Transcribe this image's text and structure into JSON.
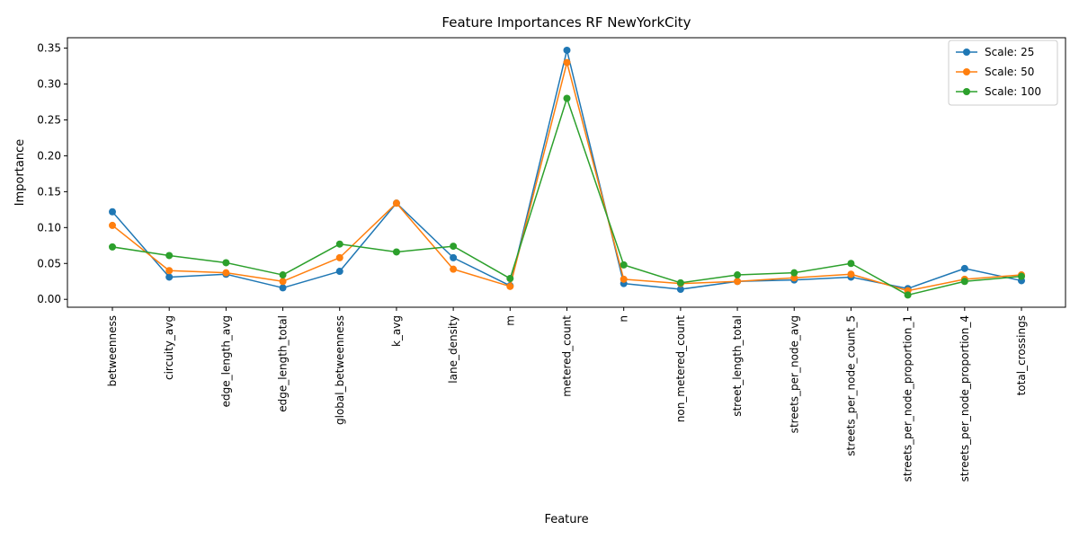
{
  "chart_data": {
    "type": "line",
    "title": "Feature Importances RF NewYorkCity",
    "xlabel": "Feature",
    "ylabel": "Importance",
    "ylim": [
      -0.011,
      0.3645
    ],
    "yticks": [
      0.0,
      0.05,
      0.1,
      0.15,
      0.2,
      0.25,
      0.3,
      0.35
    ],
    "ytick_labels": [
      "0.00",
      "0.05",
      "0.10",
      "0.15",
      "0.20",
      "0.25",
      "0.30",
      "0.35"
    ],
    "grid": false,
    "legend_position": "top-right",
    "categories": [
      "betweenness",
      "circuity_avg",
      "edge_length_avg",
      "edge_length_total",
      "global_betweenness",
      "k_avg",
      "lane_density",
      "m",
      "metered_count",
      "n",
      "non_metered_count",
      "street_length_total",
      "streets_per_node_avg",
      "streets_per_node_count_5",
      "streets_per_node_proportion_1",
      "streets_per_node_proportion_4",
      "total_crossings"
    ],
    "series": [
      {
        "name": "Scale: 25",
        "color": "#1f77b4",
        "values": [
          0.122,
          0.031,
          0.035,
          0.016,
          0.039,
          0.134,
          0.058,
          0.019,
          0.347,
          0.022,
          0.014,
          0.025,
          0.027,
          0.031,
          0.015,
          0.043,
          0.026
        ]
      },
      {
        "name": "Scale: 50",
        "color": "#ff7f0e",
        "values": [
          0.103,
          0.04,
          0.037,
          0.025,
          0.058,
          0.134,
          0.042,
          0.018,
          0.33,
          0.028,
          0.022,
          0.025,
          0.03,
          0.035,
          0.012,
          0.028,
          0.034
        ]
      },
      {
        "name": "Scale: 100",
        "color": "#2ca02c",
        "values": [
          0.073,
          0.061,
          0.051,
          0.034,
          0.077,
          0.066,
          0.074,
          0.029,
          0.28,
          0.048,
          0.023,
          0.034,
          0.037,
          0.05,
          0.006,
          0.025,
          0.032
        ]
      }
    ]
  }
}
